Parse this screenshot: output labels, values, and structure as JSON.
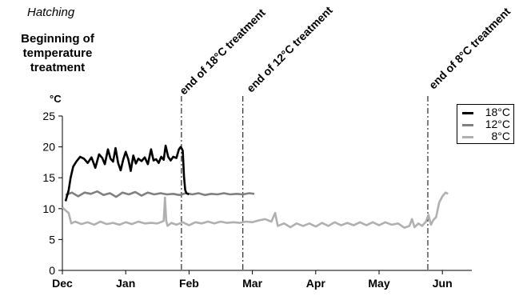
{
  "labels": {
    "hatching": "Hatching",
    "beginning": "Beginning of temperature treatment",
    "unit": "°C",
    "end18": "end of 18°C treatment",
    "end12": "end of 12°C treatment",
    "end8": "end of 8°C treatment"
  },
  "chart_data": {
    "type": "line",
    "xlabel": "",
    "ylabel": "°C",
    "ylim": [
      0,
      25
    ],
    "yticks": [
      "0",
      "5",
      "10",
      "15",
      "20",
      "25"
    ],
    "xtick_labels": [
      "Dec",
      "Jan",
      "Feb",
      "Mar",
      "Apr",
      "May",
      "Jun"
    ],
    "x_unit_note": "x values are months from start of December (0=Dec, 1=Jan, ...)",
    "grid": false,
    "legend_position": "right",
    "markers": [
      {
        "x": 1.88,
        "label": "end of 18°C treatment"
      },
      {
        "x": 2.85,
        "label": "end of 12°C treatment"
      },
      {
        "x": 5.77,
        "label": "end of 8°C treatment"
      }
    ],
    "series": [
      {
        "name": "18°C",
        "color": "#000000",
        "points": [
          [
            0.05,
            11.2
          ],
          [
            0.1,
            13.0
          ],
          [
            0.13,
            15.0
          ],
          [
            0.17,
            16.8
          ],
          [
            0.22,
            17.6
          ],
          [
            0.28,
            18.4
          ],
          [
            0.34,
            18.1
          ],
          [
            0.4,
            17.4
          ],
          [
            0.46,
            18.3
          ],
          [
            0.52,
            16.6
          ],
          [
            0.58,
            18.8
          ],
          [
            0.63,
            18.2
          ],
          [
            0.67,
            17.2
          ],
          [
            0.72,
            19.6
          ],
          [
            0.76,
            18.1
          ],
          [
            0.8,
            17.6
          ],
          [
            0.84,
            19.8
          ],
          [
            0.88,
            17.4
          ],
          [
            0.92,
            16.2
          ],
          [
            0.96,
            17.9
          ],
          [
            1.0,
            19.2
          ],
          [
            1.04,
            18.0
          ],
          [
            1.08,
            16.1
          ],
          [
            1.12,
            18.6
          ],
          [
            1.16,
            17.3
          ],
          [
            1.2,
            18.1
          ],
          [
            1.25,
            17.7
          ],
          [
            1.3,
            18.3
          ],
          [
            1.35,
            17.2
          ],
          [
            1.4,
            19.6
          ],
          [
            1.44,
            17.8
          ],
          [
            1.48,
            18.0
          ],
          [
            1.52,
            17.4
          ],
          [
            1.56,
            18.4
          ],
          [
            1.6,
            17.9
          ],
          [
            1.63,
            20.2
          ],
          [
            1.67,
            18.4
          ],
          [
            1.71,
            17.8
          ],
          [
            1.75,
            18.4
          ],
          [
            1.8,
            18.2
          ],
          [
            1.84,
            19.6
          ],
          [
            1.87,
            20.0
          ],
          [
            1.9,
            19.4
          ],
          [
            1.92,
            15.2
          ],
          [
            1.94,
            13.0
          ],
          [
            1.96,
            12.5
          ],
          [
            2.0,
            12.3
          ]
        ]
      },
      {
        "name": "12°C",
        "color": "#808080",
        "points": [
          [
            0.05,
            12.2
          ],
          [
            0.15,
            12.6
          ],
          [
            0.25,
            12.0
          ],
          [
            0.35,
            12.6
          ],
          [
            0.45,
            12.4
          ],
          [
            0.55,
            12.8
          ],
          [
            0.65,
            12.2
          ],
          [
            0.75,
            12.5
          ],
          [
            0.85,
            11.9
          ],
          [
            0.95,
            12.6
          ],
          [
            1.05,
            12.3
          ],
          [
            1.15,
            12.7
          ],
          [
            1.25,
            12.1
          ],
          [
            1.35,
            12.6
          ],
          [
            1.45,
            12.3
          ],
          [
            1.55,
            12.5
          ],
          [
            1.65,
            12.3
          ],
          [
            1.75,
            12.4
          ],
          [
            1.85,
            12.2
          ],
          [
            1.95,
            12.5
          ],
          [
            2.05,
            12.3
          ],
          [
            2.15,
            12.5
          ],
          [
            2.25,
            12.2
          ],
          [
            2.35,
            12.4
          ],
          [
            2.45,
            12.3
          ],
          [
            2.55,
            12.5
          ],
          [
            2.65,
            12.3
          ],
          [
            2.75,
            12.4
          ],
          [
            2.85,
            12.3
          ],
          [
            2.95,
            12.5
          ],
          [
            3.03,
            12.4
          ]
        ]
      },
      {
        "name": "8°C",
        "color": "#b0b0b0",
        "points": [
          [
            0.0,
            10.2
          ],
          [
            0.05,
            9.7
          ],
          [
            0.1,
            9.3
          ],
          [
            0.14,
            7.6
          ],
          [
            0.2,
            7.9
          ],
          [
            0.3,
            7.5
          ],
          [
            0.4,
            7.8
          ],
          [
            0.5,
            7.4
          ],
          [
            0.6,
            7.9
          ],
          [
            0.7,
            7.5
          ],
          [
            0.8,
            7.7
          ],
          [
            0.9,
            7.4
          ],
          [
            1.0,
            7.8
          ],
          [
            1.1,
            7.5
          ],
          [
            1.2,
            7.9
          ],
          [
            1.3,
            7.6
          ],
          [
            1.4,
            7.7
          ],
          [
            1.5,
            7.6
          ],
          [
            1.55,
            7.8
          ],
          [
            1.6,
            8.0
          ],
          [
            1.62,
            11.8
          ],
          [
            1.64,
            8.0
          ],
          [
            1.66,
            7.2
          ],
          [
            1.72,
            7.7
          ],
          [
            1.8,
            7.4
          ],
          [
            1.9,
            7.8
          ],
          [
            2.0,
            7.3
          ],
          [
            2.1,
            7.8
          ],
          [
            2.2,
            7.6
          ],
          [
            2.3,
            7.9
          ],
          [
            2.4,
            7.6
          ],
          [
            2.5,
            7.9
          ],
          [
            2.6,
            7.7
          ],
          [
            2.7,
            7.8
          ],
          [
            2.8,
            7.7
          ],
          [
            2.9,
            7.9
          ],
          [
            3.0,
            7.8
          ],
          [
            3.1,
            8.1
          ],
          [
            3.2,
            8.3
          ],
          [
            3.3,
            7.9
          ],
          [
            3.36,
            9.3
          ],
          [
            3.4,
            7.2
          ],
          [
            3.5,
            7.6
          ],
          [
            3.6,
            7.0
          ],
          [
            3.7,
            7.6
          ],
          [
            3.8,
            7.2
          ],
          [
            3.9,
            7.6
          ],
          [
            4.0,
            7.1
          ],
          [
            4.1,
            7.7
          ],
          [
            4.2,
            7.2
          ],
          [
            4.3,
            7.8
          ],
          [
            4.4,
            7.3
          ],
          [
            4.5,
            7.7
          ],
          [
            4.6,
            7.3
          ],
          [
            4.7,
            7.8
          ],
          [
            4.8,
            7.3
          ],
          [
            4.9,
            7.8
          ],
          [
            5.0,
            7.3
          ],
          [
            5.1,
            7.8
          ],
          [
            5.2,
            7.4
          ],
          [
            5.3,
            7.6
          ],
          [
            5.4,
            6.9
          ],
          [
            5.48,
            7.2
          ],
          [
            5.52,
            8.3
          ],
          [
            5.56,
            7.0
          ],
          [
            5.62,
            7.6
          ],
          [
            5.68,
            7.2
          ],
          [
            5.74,
            7.9
          ],
          [
            5.78,
            9.0
          ],
          [
            5.82,
            7.4
          ],
          [
            5.86,
            8.2
          ],
          [
            5.9,
            8.6
          ],
          [
            5.95,
            11.0
          ],
          [
            6.0,
            12.0
          ],
          [
            6.05,
            12.6
          ],
          [
            6.09,
            12.4
          ]
        ]
      }
    ]
  }
}
